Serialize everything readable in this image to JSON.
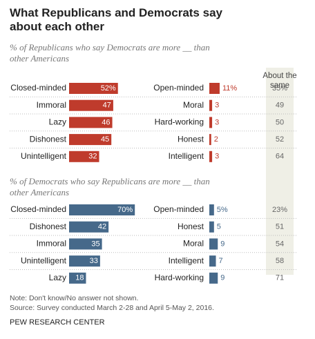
{
  "title": "What Republicans and Democrats say about each other",
  "column_header": "About the same",
  "note": "Note: Don't know/No answer not shown.",
  "source": "Source: Survey conducted March 2-28 and April 5-May 2, 2016.",
  "credit": "PEW RESEARCH CENTER",
  "chart_data": [
    {
      "type": "bar",
      "subtitle": "% of Republicans who say Democrats are more __ than other Americans",
      "color": "#bf3b2c",
      "categories": [
        "Closed-minded",
        "Immoral",
        "Lazy",
        "Dishonest",
        "Unintelligent"
      ],
      "values": [
        52,
        47,
        46,
        45,
        32
      ],
      "value_labels": [
        "52%",
        "47",
        "46",
        "45",
        "32"
      ],
      "opposite_categories": [
        "Open-minded",
        "Moral",
        "Hard-working",
        "Honest",
        "Intelligent"
      ],
      "opposite_values": [
        11,
        3,
        3,
        2,
        3
      ],
      "opposite_value_labels": [
        "11%",
        "3",
        "3",
        "2",
        "3"
      ],
      "same_values": [
        35,
        49,
        50,
        52,
        64
      ],
      "same_value_labels": [
        "35%",
        "49",
        "50",
        "52",
        "64"
      ]
    },
    {
      "type": "bar",
      "subtitle": "% of Democrats who say Republicans are more __ than other Americans",
      "color": "#46698a",
      "categories": [
        "Closed-minded",
        "Dishonest",
        "Immoral",
        "Unintelligent",
        "Lazy"
      ],
      "values": [
        70,
        42,
        35,
        33,
        18
      ],
      "value_labels": [
        "70%",
        "42",
        "35",
        "33",
        "18"
      ],
      "opposite_categories": [
        "Open-minded",
        "Honest",
        "Moral",
        "Intelligent",
        "Hard-working"
      ],
      "opposite_values": [
        5,
        5,
        9,
        7,
        9
      ],
      "opposite_value_labels": [
        "5%",
        "5",
        "9",
        "7",
        "9"
      ],
      "same_values": [
        23,
        51,
        54,
        58,
        71
      ],
      "same_value_labels": [
        "23%",
        "51",
        "54",
        "58",
        "71"
      ]
    }
  ]
}
